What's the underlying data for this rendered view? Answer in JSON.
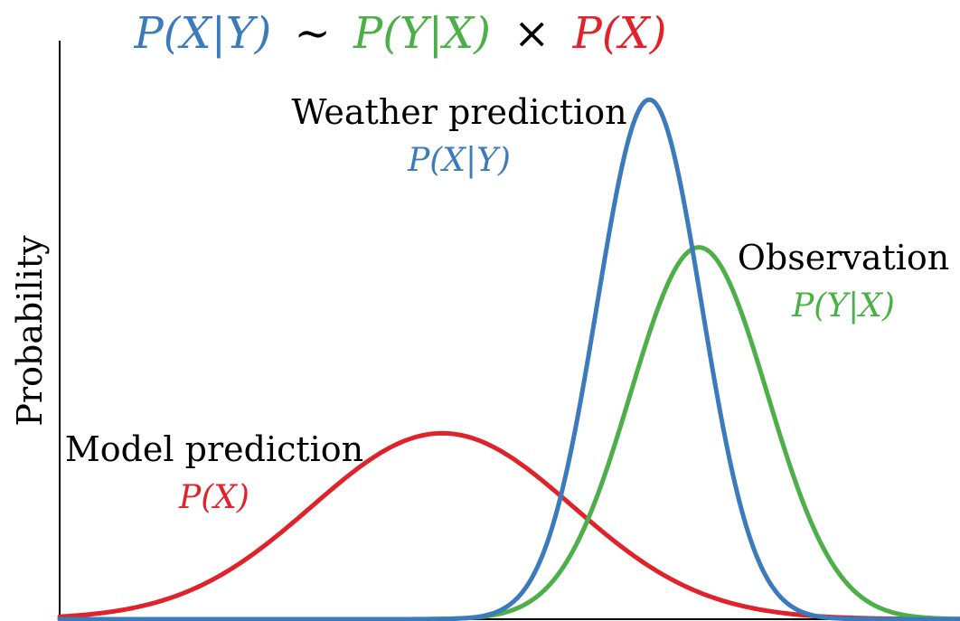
{
  "title": {
    "lhs": "P(X|Y)",
    "sim": "∼",
    "mid": "P(Y|X)",
    "times": "×",
    "rhs": "P(X)"
  },
  "y_axis_label": "Probability",
  "curves": [
    {
      "id": "model",
      "label": "Model prediction",
      "formula": "P(X)",
      "color": "#e0232b",
      "mean": 0.425,
      "sd": 0.145,
      "peak": 0.34
    },
    {
      "id": "weather",
      "label": "Weather prediction",
      "formula": "P(X|Y)",
      "color": "#3b7bbd",
      "mean": 0.655,
      "sd": 0.058,
      "peak": 0.95
    },
    {
      "id": "observation",
      "label": "Observation",
      "formula": "P(Y|X)",
      "color": "#4caf48",
      "mean": 0.71,
      "sd": 0.076,
      "peak": 0.68
    }
  ],
  "colors": {
    "axis": "#000000",
    "text": "#000000"
  }
}
